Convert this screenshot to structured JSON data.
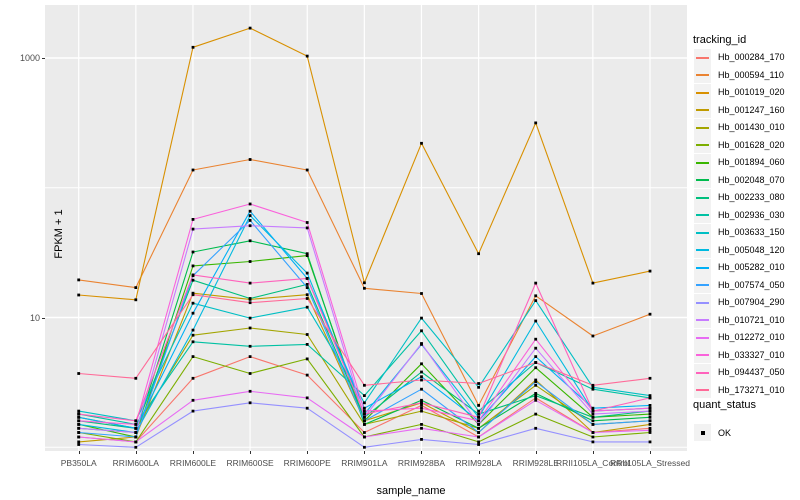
{
  "chart_data": {
    "type": "line",
    "title": "",
    "xlabel": "sample_name",
    "ylabel": "FPKM + 1",
    "y_scale": "log10",
    "y_axis_breaks": [
      10,
      1000
    ],
    "y_axis_break_labels": [
      "10",
      "1000"
    ],
    "y_minor_breaks": [
      1,
      100
    ],
    "ylim": [
      0.93,
      2560
    ],
    "grid": true,
    "legend_position": "right",
    "panel_bg": "#EBEBEB",
    "grid_color": "#FFFFFF",
    "point_color": "#000000",
    "axis_text_color": "#4D4D4D",
    "point_shape": "square",
    "categories": [
      "PB350LA",
      "RRIM600LA",
      "RRIM600LE",
      "RRIM600SE",
      "RRIM600PE",
      "RRIM901LA",
      "RRIM928BA",
      "RRIM928LA",
      "RRIM928LE",
      "RRII105LA_Control",
      "RRII105LA_Stressed"
    ],
    "legend_title": "tracking_id",
    "series": [
      {
        "name": "Hb_000284_170",
        "color": "#F8766D",
        "values": [
          1.2,
          1.1,
          3.4,
          5.0,
          3.6,
          1.3,
          2.1,
          1.2,
          2.4,
          1.3,
          1.4
        ]
      },
      {
        "name": "Hb_000594_110",
        "color": "#EA8331",
        "values": [
          19.5,
          17.0,
          137,
          165,
          137,
          16.8,
          15.3,
          2.1,
          14.7,
          7.2,
          10.6
        ]
      },
      {
        "name": "Hb_001019_020",
        "color": "#D89000",
        "values": [
          14.9,
          13.7,
          1210,
          1700,
          1035,
          18.5,
          220,
          31,
          316,
          18.4,
          22.8
        ]
      },
      {
        "name": "Hb_001247_160",
        "color": "#C09B00",
        "values": [
          1.1,
          1.2,
          15.4,
          13.8,
          15.0,
          1.6,
          2.2,
          1.3,
          3.3,
          1.3,
          1.5
        ]
      },
      {
        "name": "Hb_001430_010",
        "color": "#A3A500",
        "values": [
          1.7,
          1.4,
          7.3,
          8.3,
          7.4,
          1.5,
          1.9,
          1.4,
          3.0,
          1.5,
          1.6
        ]
      },
      {
        "name": "Hb_001628_020",
        "color": "#7CAE00",
        "values": [
          1.3,
          1.1,
          5.0,
          3.7,
          4.8,
          1.2,
          1.5,
          1.1,
          1.8,
          1.2,
          1.3
        ]
      },
      {
        "name": "Hb_001894_060",
        "color": "#39B600",
        "values": [
          1.5,
          1.2,
          25,
          27,
          30,
          1.6,
          4.4,
          1.5,
          4.1,
          1.7,
          1.8
        ]
      },
      {
        "name": "Hb_002048_070",
        "color": "#00BB4E",
        "values": [
          1.4,
          1.3,
          32,
          39,
          31,
          1.5,
          2.3,
          1.4,
          2.6,
          1.6,
          1.7
        ]
      },
      {
        "name": "Hb_002233_080",
        "color": "#00BF7D",
        "values": [
          1.6,
          1.4,
          19.4,
          14,
          18,
          1.7,
          3.8,
          1.8,
          2.5,
          1.7,
          1.9
        ]
      },
      {
        "name": "Hb_002936_030",
        "color": "#00C1A3",
        "values": [
          1.8,
          1.5,
          6.5,
          6.0,
          6.2,
          2.5,
          7.9,
          1.9,
          4.5,
          2.8,
          2.4
        ]
      },
      {
        "name": "Hb_003633_150",
        "color": "#00BFC4",
        "values": [
          1.9,
          1.6,
          12.9,
          9.9,
          12.0,
          2.2,
          9.9,
          2.9,
          13.5,
          2.9,
          2.5
        ]
      },
      {
        "name": "Hb_005048_120",
        "color": "#00BAE0",
        "values": [
          1.5,
          1.3,
          8.0,
          61,
          22,
          1.8,
          6.2,
          1.7,
          9.4,
          1.9,
          2.0
        ]
      },
      {
        "name": "Hb_005282_010",
        "color": "#00B0F6",
        "values": [
          1.7,
          1.4,
          10.8,
          66,
          20,
          2.0,
          3.5,
          1.6,
          5.0,
          2.0,
          2.1
        ]
      },
      {
        "name": "Hb_007574_050",
        "color": "#35A2FF",
        "values": [
          1.3,
          1.2,
          21,
          56,
          17,
          1.6,
          2.8,
          1.3,
          3.2,
          1.5,
          1.6
        ]
      },
      {
        "name": "Hb_007904_290",
        "color": "#9590FF",
        "values": [
          1.05,
          1.0,
          1.9,
          2.2,
          2.0,
          1.0,
          1.15,
          1.05,
          1.4,
          1.1,
          1.1
        ]
      },
      {
        "name": "Hb_010721_010",
        "color": "#C77CFF",
        "values": [
          1.4,
          1.3,
          48,
          51,
          49,
          1.7,
          6.3,
          1.5,
          5.8,
          1.8,
          1.9
        ]
      },
      {
        "name": "Hb_012272_010",
        "color": "#E76BF3",
        "values": [
          1.2,
          1.1,
          2.3,
          2.7,
          2.4,
          1.2,
          1.4,
          1.2,
          2.3,
          1.3,
          1.35
        ]
      },
      {
        "name": "Hb_033327_010",
        "color": "#FA62DB",
        "values": [
          1.6,
          1.5,
          57,
          75,
          54,
          1.9,
          2.0,
          1.6,
          6.8,
          1.9,
          2.0
        ]
      },
      {
        "name": "Hb_094437_050",
        "color": "#FF62BC",
        "values": [
          1.8,
          1.6,
          21.3,
          18.4,
          20,
          1.8,
          2.2,
          1.7,
          18.4,
          1.9,
          2.4
        ]
      },
      {
        "name": "Hb_173271_010",
        "color": "#FF6A98",
        "values": [
          3.7,
          3.4,
          15,
          13,
          14,
          3.0,
          3.3,
          3.1,
          4.5,
          3.0,
          3.4
        ]
      }
    ],
    "legend2": {
      "title": "quant_status",
      "items": [
        {
          "label": "OK",
          "marker": "black-square"
        }
      ]
    }
  }
}
